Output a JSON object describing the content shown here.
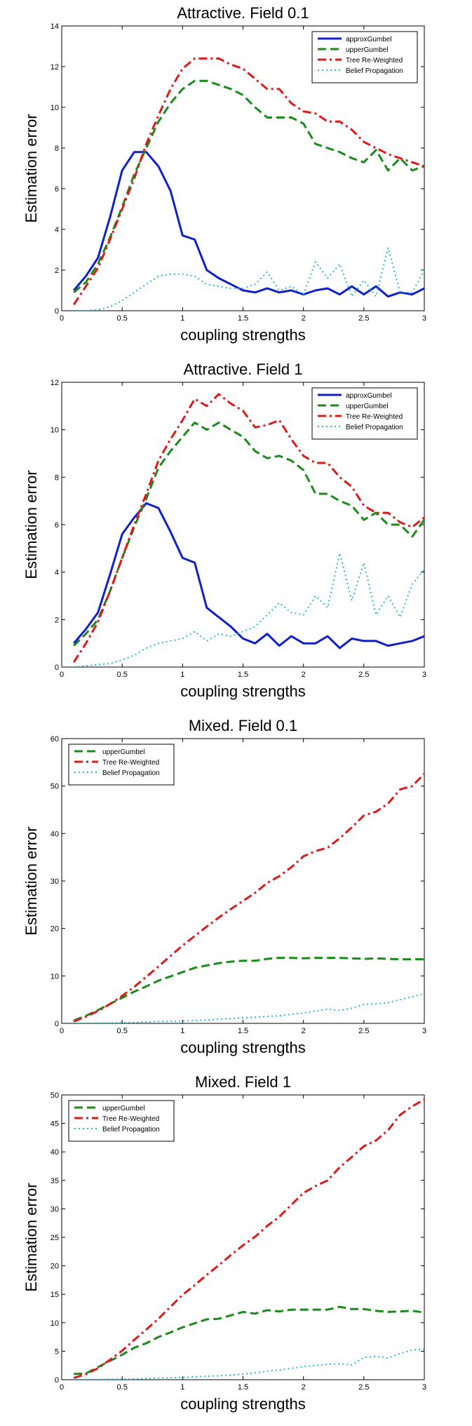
{
  "chart_data": [
    {
      "type": "line",
      "title": "Attractive. Field 0.1",
      "xlabel": "coupling strengths",
      "ylabel": "Estimation error",
      "xlim": [
        0,
        3
      ],
      "ylim": [
        0,
        14
      ],
      "xticks": [
        "0",
        "0.5",
        "1",
        "1.5",
        "2",
        "2.5",
        "3"
      ],
      "yticks": [
        "0",
        "2",
        "4",
        "6",
        "8",
        "10",
        "12",
        "14"
      ],
      "legend_position": "top-right",
      "x": [
        0.1,
        0.2,
        0.3,
        0.4,
        0.5,
        0.6,
        0.7,
        0.8,
        0.9,
        1.0,
        1.1,
        1.2,
        1.3,
        1.4,
        1.5,
        1.6,
        1.7,
        1.8,
        1.9,
        2.0,
        2.1,
        2.2,
        2.3,
        2.4,
        2.5,
        2.6,
        2.7,
        2.8,
        2.9,
        3.0
      ],
      "series": [
        {
          "name": "approxGumbel",
          "color": "#1020c8",
          "dash": "solid",
          "values": [
            1.0,
            1.7,
            2.6,
            4.6,
            6.9,
            7.8,
            7.8,
            7.1,
            5.9,
            3.7,
            3.5,
            2.0,
            1.6,
            1.3,
            1.0,
            0.9,
            1.1,
            0.9,
            1.0,
            0.8,
            1.0,
            1.1,
            0.8,
            1.2,
            0.8,
            1.2,
            0.7,
            0.9,
            0.8,
            1.1
          ]
        },
        {
          "name": "upperGumbel",
          "color": "#1a8a1a",
          "dash": "dashed",
          "values": [
            0.9,
            1.4,
            2.3,
            3.6,
            5.1,
            6.7,
            8.0,
            9.3,
            10.2,
            10.9,
            11.3,
            11.3,
            11.1,
            10.9,
            10.6,
            10.0,
            9.5,
            9.5,
            9.5,
            9.2,
            8.2,
            8.0,
            7.8,
            7.5,
            7.3,
            7.9,
            6.9,
            7.5,
            6.9,
            7.1
          ]
        },
        {
          "name": "Tree Re-Weighted",
          "color": "#dd1a1a",
          "dash": "dashdot",
          "values": [
            0.3,
            1.2,
            2.1,
            3.5,
            5.0,
            6.5,
            8.2,
            9.6,
            10.9,
            11.9,
            12.4,
            12.4,
            12.4,
            12.1,
            11.9,
            11.4,
            10.9,
            10.9,
            10.2,
            9.8,
            9.7,
            9.3,
            9.3,
            8.9,
            8.3,
            8.0,
            7.7,
            7.5,
            7.3,
            7.1
          ]
        },
        {
          "name": "Belief Propagation",
          "color": "#29b8cf",
          "dash": "dotted",
          "values": [
            0.0,
            0.0,
            0.05,
            0.2,
            0.5,
            0.9,
            1.3,
            1.7,
            1.8,
            1.8,
            1.7,
            1.3,
            1.2,
            1.1,
            1.1,
            1.3,
            1.9,
            1.0,
            1.2,
            0.8,
            2.4,
            1.6,
            2.3,
            0.7,
            1.5,
            0.7,
            3.1,
            0.9,
            0.9,
            2.0
          ]
        }
      ]
    },
    {
      "type": "line",
      "title": "Attractive. Field 1",
      "xlabel": "coupling strengths",
      "ylabel": "Estimation error",
      "xlim": [
        0,
        3
      ],
      "ylim": [
        0,
        12
      ],
      "xticks": [
        "0",
        "0.5",
        "1",
        "1.5",
        "2",
        "2.5",
        "3"
      ],
      "yticks": [
        "0",
        "2",
        "4",
        "6",
        "8",
        "10",
        "12"
      ],
      "legend_position": "top-right",
      "x": [
        0.1,
        0.2,
        0.3,
        0.4,
        0.5,
        0.6,
        0.7,
        0.8,
        0.9,
        1.0,
        1.1,
        1.2,
        1.3,
        1.4,
        1.5,
        1.6,
        1.7,
        1.8,
        1.9,
        2.0,
        2.1,
        2.2,
        2.3,
        2.4,
        2.5,
        2.6,
        2.7,
        2.8,
        2.9,
        3.0
      ],
      "series": [
        {
          "name": "approxGumbel",
          "color": "#1020c8",
          "dash": "solid",
          "values": [
            1.0,
            1.6,
            2.3,
            3.9,
            5.6,
            6.3,
            6.9,
            6.7,
            5.7,
            4.6,
            4.4,
            2.5,
            2.1,
            1.7,
            1.2,
            1.0,
            1.4,
            0.9,
            1.3,
            1.0,
            1.0,
            1.3,
            0.8,
            1.2,
            1.1,
            1.1,
            0.9,
            1.0,
            1.1,
            1.3
          ]
        },
        {
          "name": "upperGumbel",
          "color": "#1a8a1a",
          "dash": "dashed",
          "values": [
            0.9,
            1.4,
            2.0,
            3.2,
            4.6,
            5.9,
            7.1,
            8.4,
            9.1,
            9.7,
            10.3,
            10.0,
            10.3,
            10.0,
            9.7,
            9.1,
            8.8,
            8.9,
            8.7,
            8.3,
            7.3,
            7.3,
            7.0,
            6.8,
            6.2,
            6.5,
            6.0,
            6.0,
            5.5,
            6.2
          ]
        },
        {
          "name": "Tree Re-Weighted",
          "color": "#dd1a1a",
          "dash": "dashdot",
          "values": [
            0.2,
            1.0,
            1.9,
            3.2,
            4.6,
            6.0,
            7.3,
            8.7,
            9.6,
            10.4,
            11.3,
            11.0,
            11.5,
            11.1,
            10.8,
            10.1,
            10.2,
            10.4,
            9.6,
            8.9,
            8.6,
            8.6,
            8.0,
            7.6,
            6.8,
            6.5,
            6.5,
            6.1,
            5.9,
            6.3
          ]
        },
        {
          "name": "Belief Propagation",
          "color": "#29b8cf",
          "dash": "dotted",
          "values": [
            0.0,
            0.05,
            0.1,
            0.15,
            0.3,
            0.5,
            0.8,
            1.0,
            1.1,
            1.2,
            1.5,
            1.1,
            1.4,
            1.3,
            1.5,
            1.7,
            2.2,
            2.7,
            2.3,
            2.2,
            3.0,
            2.5,
            4.8,
            2.8,
            4.4,
            2.2,
            3.0,
            2.1,
            3.5,
            4.1
          ]
        }
      ]
    },
    {
      "type": "line",
      "title": "Mixed. Field 0.1",
      "xlabel": "coupling strengths",
      "ylabel": "Estimation error",
      "xlim": [
        0,
        3
      ],
      "ylim": [
        0,
        60
      ],
      "xticks": [
        "0",
        "0.5",
        "1",
        "1.5",
        "2",
        "2.5",
        "3"
      ],
      "yticks": [
        "0",
        "10",
        "20",
        "30",
        "40",
        "50",
        "60"
      ],
      "legend_position": "top-left",
      "x": [
        0.1,
        0.2,
        0.3,
        0.4,
        0.5,
        0.6,
        0.7,
        0.8,
        0.9,
        1.0,
        1.1,
        1.2,
        1.3,
        1.4,
        1.5,
        1.6,
        1.7,
        1.8,
        1.9,
        2.0,
        2.1,
        2.2,
        2.3,
        2.4,
        2.5,
        2.6,
        2.7,
        2.8,
        2.9,
        3.0
      ],
      "series": [
        {
          "name": "upperGumbel",
          "color": "#1a8a1a",
          "dash": "dashed",
          "values": [
            0.6,
            1.6,
            2.8,
            4.1,
            5.4,
            6.7,
            7.8,
            9.0,
            9.9,
            10.8,
            11.7,
            12.2,
            12.7,
            13.0,
            13.2,
            13.2,
            13.6,
            13.8,
            13.8,
            13.7,
            13.8,
            13.8,
            13.8,
            13.7,
            13.6,
            13.7,
            13.6,
            13.5,
            13.5,
            13.5
          ]
        },
        {
          "name": "Tree Re-Weighted",
          "color": "#dd1a1a",
          "dash": "dashdot",
          "values": [
            0.4,
            1.4,
            2.6,
            4.1,
            5.8,
            7.7,
            9.8,
            12.0,
            14.2,
            16.4,
            18.4,
            20.4,
            22.3,
            24.1,
            25.8,
            27.5,
            29.6,
            31.0,
            32.9,
            35.2,
            36.3,
            37.0,
            39.0,
            41.3,
            43.8,
            44.6,
            46.3,
            49.3,
            50.0,
            52.6
          ]
        },
        {
          "name": "Belief Propagation",
          "color": "#29b8cf",
          "dash": "dotted",
          "values": [
            0.0,
            0.0,
            0.05,
            0.1,
            0.15,
            0.2,
            0.3,
            0.4,
            0.45,
            0.5,
            0.6,
            0.7,
            0.9,
            1.0,
            1.2,
            1.3,
            1.5,
            1.6,
            1.9,
            2.2,
            2.6,
            3.0,
            2.7,
            3.2,
            4.0,
            4.1,
            4.4,
            5.0,
            5.6,
            6.3
          ]
        }
      ]
    },
    {
      "type": "line",
      "title": "Mixed. Field 1",
      "xlabel": "coupling strengths",
      "ylabel": "Estimation error",
      "xlim": [
        0,
        3
      ],
      "ylim": [
        0,
        50
      ],
      "xticks": [
        "0",
        "0.5",
        "1",
        "1.5",
        "2",
        "2.5",
        "3"
      ],
      "yticks": [
        "0",
        "5",
        "10",
        "15",
        "20",
        "25",
        "30",
        "35",
        "40",
        "45",
        "50"
      ],
      "legend_position": "top-left",
      "x": [
        0.1,
        0.2,
        0.3,
        0.4,
        0.5,
        0.6,
        0.7,
        0.8,
        0.9,
        1.0,
        1.1,
        1.2,
        1.3,
        1.4,
        1.5,
        1.6,
        1.7,
        1.8,
        1.9,
        2.0,
        2.1,
        2.2,
        2.3,
        2.4,
        2.5,
        2.6,
        2.7,
        2.8,
        2.9,
        3.0
      ],
      "series": [
        {
          "name": "upperGumbel",
          "color": "#1a8a1a",
          "dash": "dashed",
          "values": [
            1.0,
            1.1,
            2.2,
            3.3,
            4.4,
            5.6,
            6.4,
            7.5,
            8.3,
            9.2,
            9.9,
            10.6,
            10.7,
            11.3,
            11.9,
            11.6,
            12.2,
            12.0,
            12.3,
            12.3,
            12.3,
            12.3,
            12.8,
            12.4,
            12.4,
            12.1,
            11.9,
            12.0,
            12.1,
            11.8
          ]
        },
        {
          "name": "Tree Re-Weighted",
          "color": "#dd1a1a",
          "dash": "dashdot",
          "values": [
            0.3,
            1.0,
            2.0,
            3.5,
            5.1,
            7.0,
            8.8,
            10.7,
            12.8,
            14.9,
            16.6,
            18.4,
            20.1,
            21.9,
            23.6,
            25.1,
            27.0,
            28.6,
            30.7,
            32.8,
            34.0,
            35.0,
            37.3,
            39.1,
            41.0,
            42.0,
            43.8,
            46.5,
            48.0,
            49.2
          ]
        },
        {
          "name": "Belief Propagation",
          "color": "#29b8cf",
          "dash": "dotted",
          "values": [
            0.0,
            0.0,
            0.05,
            0.1,
            0.1,
            0.15,
            0.2,
            0.3,
            0.35,
            0.4,
            0.5,
            0.6,
            0.7,
            0.8,
            1.0,
            1.2,
            1.5,
            1.7,
            2.0,
            2.3,
            2.5,
            2.7,
            2.8,
            2.6,
            3.9,
            4.1,
            3.8,
            4.6,
            5.2,
            5.4
          ]
        }
      ]
    }
  ]
}
